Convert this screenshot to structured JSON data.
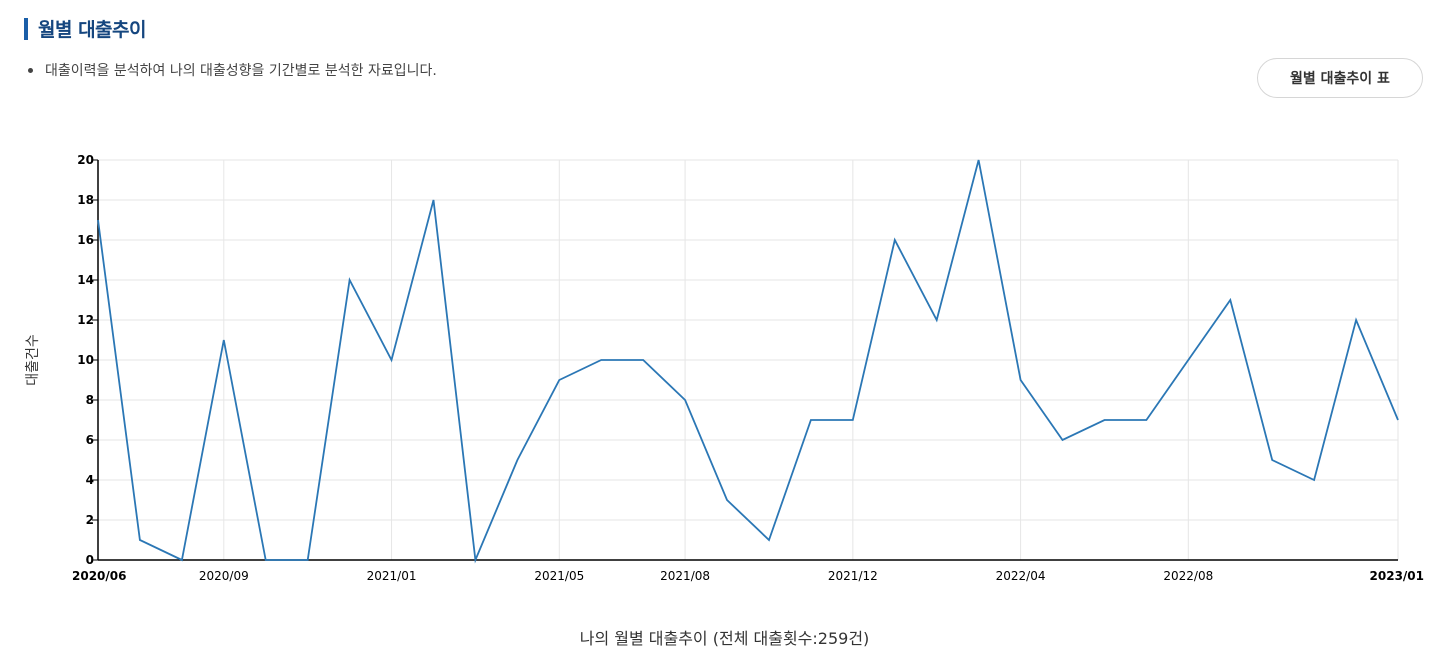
{
  "section": {
    "title": "월별 대출추이"
  },
  "description": "대출이력을 분석하여 나의 대출성향을 기간별로 분석한 자료입니다.",
  "table_button": "월별 대출추이 표",
  "chart_data": {
    "type": "line",
    "title": "나의 월별 대출추이 (전체 대출횟수:259건)",
    "ylabel": "대출건수",
    "xlabel": "",
    "ylim": [
      0,
      20
    ],
    "yticks": [
      0,
      2,
      4,
      6,
      8,
      10,
      12,
      14,
      16,
      18,
      20
    ],
    "x_tick_labels": [
      "2020/06",
      "2020/09",
      "2021/01",
      "2021/05",
      "2021/08",
      "2021/12",
      "2022/04",
      "2022/08",
      "2023/01"
    ],
    "x": [
      "2020/06",
      "2020/07",
      "2020/08",
      "2020/09",
      "2020/10",
      "2020/11",
      "2020/12",
      "2021/01",
      "2021/02",
      "2021/03",
      "2021/04",
      "2021/05",
      "2021/06",
      "2021/07",
      "2021/08",
      "2021/09",
      "2021/10",
      "2021/11",
      "2021/12",
      "2022/01",
      "2022/02",
      "2022/03",
      "2022/04",
      "2022/05",
      "2022/06",
      "2022/07",
      "2022/08",
      "2022/09",
      "2022/10",
      "2022/11",
      "2022/12",
      "2023/01"
    ],
    "series": [
      {
        "values": [
          17,
          1,
          0,
          11,
          0,
          0,
          14,
          10,
          18,
          0,
          5,
          9,
          10,
          10,
          8,
          3,
          1,
          7,
          7,
          16,
          12,
          20,
          9,
          6,
          7,
          7,
          10,
          13,
          5,
          4,
          12,
          7
        ]
      }
    ],
    "grid": true,
    "line_color": "#2b77b5"
  }
}
